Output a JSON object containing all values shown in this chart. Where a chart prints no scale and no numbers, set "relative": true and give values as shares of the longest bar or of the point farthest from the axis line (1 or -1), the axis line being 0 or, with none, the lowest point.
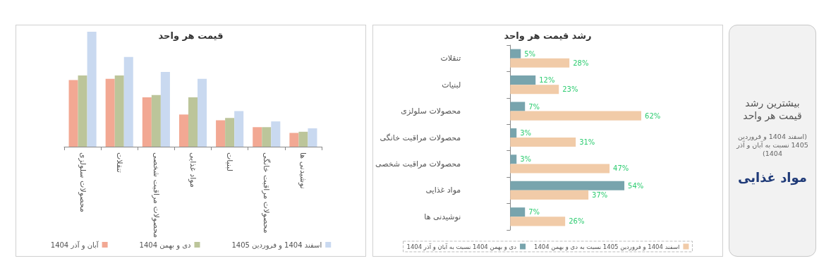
{
  "chart_data": [
    {
      "type": "bar",
      "title": "قیمت هر واحد",
      "relative": true,
      "legend": "bottom",
      "categories": [
        "محصولات سلولزی",
        "تنقلات",
        "محصولات مراقبت شخصی",
        "مواد غذایی",
        "لبنیات",
        "محصولات مراقبت خانگی",
        "نوشیدنی ها"
      ],
      "series": [
        {
          "name": "آبان و آذر 1404",
          "color": "#f2a893",
          "values": [
            0.58,
            0.59,
            0.43,
            0.28,
            0.23,
            0.17,
            0.12
          ]
        },
        {
          "name": "دی و بهمن 1404",
          "color": "#bcc59a",
          "values": [
            0.62,
            0.62,
            0.45,
            0.43,
            0.25,
            0.17,
            0.13
          ]
        },
        {
          "name": "اسفند 1404 و فروردین 1405",
          "color": "#c9d9f0",
          "values": [
            1,
            0.78,
            0.65,
            0.59,
            0.31,
            0.22,
            0.16
          ]
        }
      ]
    },
    {
      "type": "bar",
      "orientation": "horizontal",
      "title": "رشد قیمت هر واحد",
      "tick_labels": "y",
      "legend": "bottom",
      "categories": [
        "تنقلات",
        "لبنیات",
        "محصولات سلولزی",
        "محصولات مراقبت خانگی",
        "محصولات مراقبت شخصی",
        "مواد غذایی",
        "نوشیدنی ها"
      ],
      "series": [
        {
          "name": "دی و بهمن 1404 نسبت به آبان و آذر 1404",
          "color": "#78a4ad",
          "values": [
            5,
            12,
            7,
            3,
            3,
            54,
            7
          ],
          "value_labels": [
            "5%",
            "12%",
            "7%",
            "3%",
            "3%",
            "54%",
            "7%"
          ]
        },
        {
          "name": "اسفند 1404 و فروردین 1405 نسبت به دی و بهمن 1404",
          "color": "#f1cba8",
          "values": [
            28,
            23,
            62,
            31,
            47,
            37,
            26
          ],
          "value_labels": [
            "28%",
            "23%",
            "62%",
            "31%",
            "47%",
            "37%",
            "26%"
          ]
        }
      ]
    },
    {
      "type": "other",
      "title": "بیشترین رشد قیمت هر واحد",
      "subtitle": "(اسفند 1404 و فروردین 1405 نسبت به آبان و آذر 1404)",
      "annotations": [
        "مواد غذایی"
      ]
    }
  ]
}
